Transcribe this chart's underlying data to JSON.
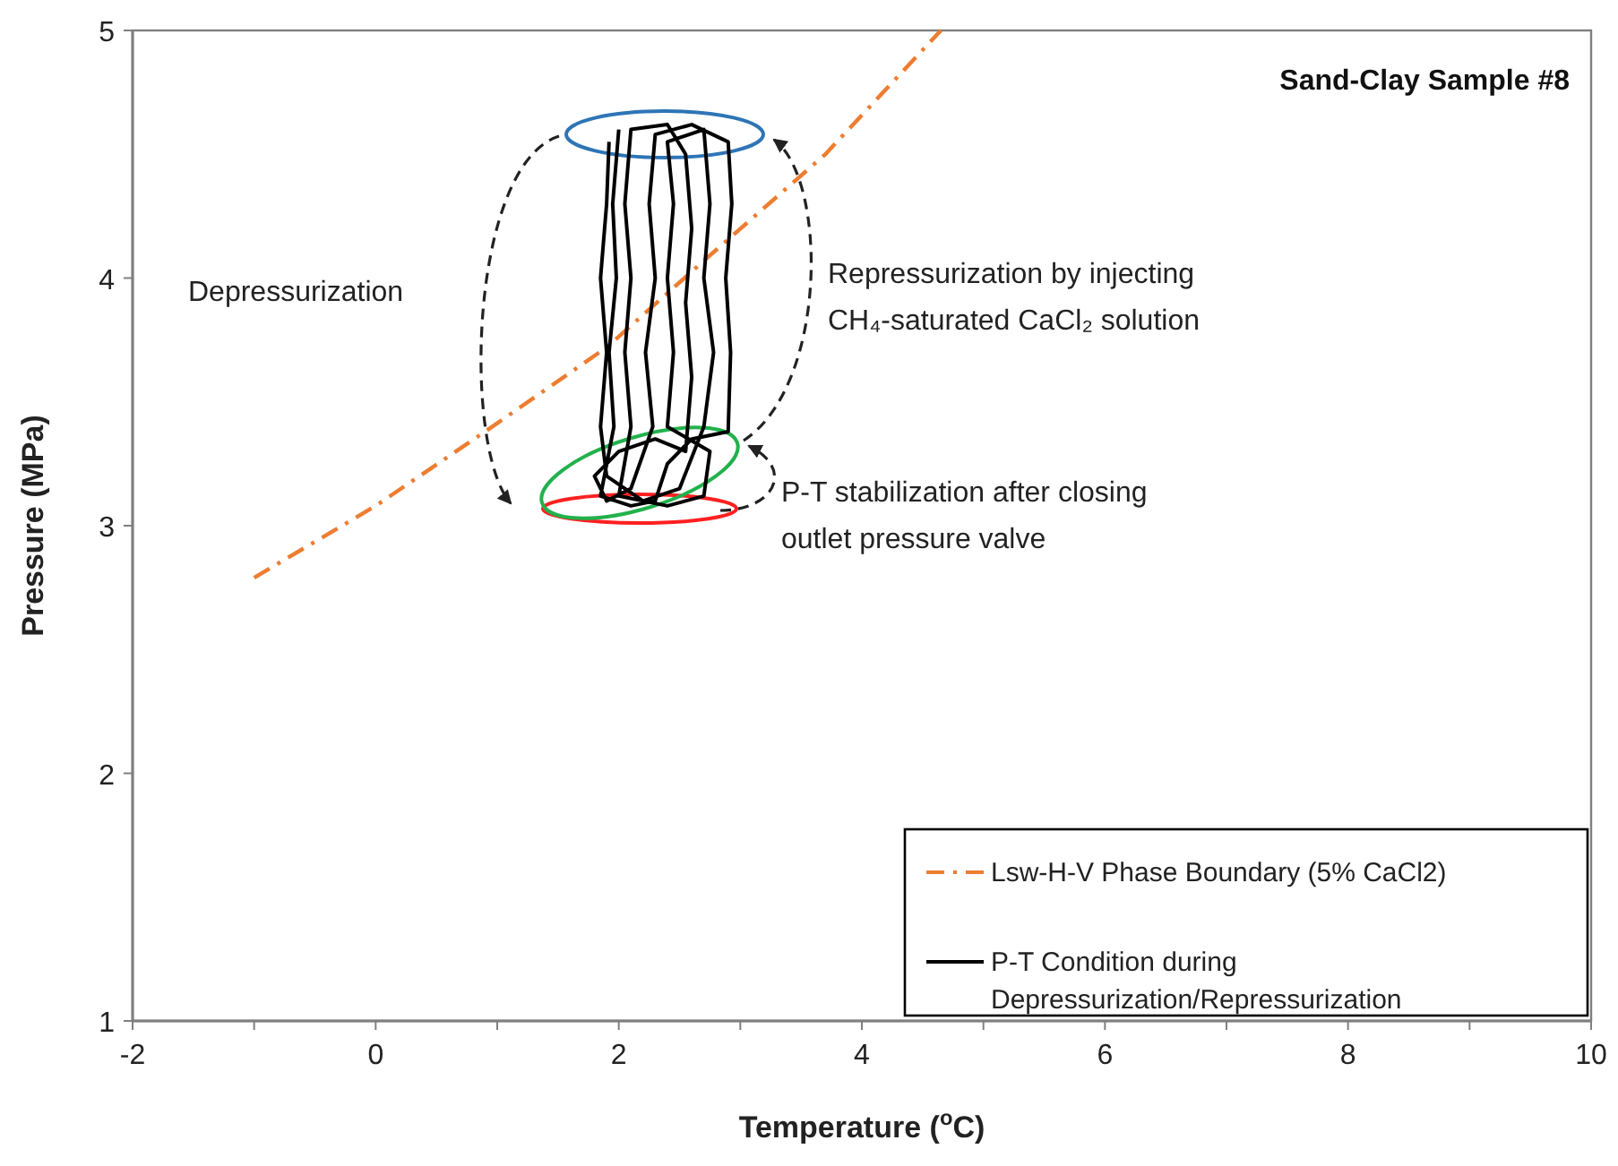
{
  "chart_data": {
    "type": "line",
    "title": "Sand-Clay Sample #8",
    "xlabel": "Temperature ($^{o}$C)",
    "ylabel": "Pressure (MPa)",
    "xlim": [
      -2,
      10
    ],
    "ylim": [
      1,
      5
    ],
    "xticks": [
      -2,
      {
        "value": -1,
        "label": null
      },
      0,
      {
        "value": 1,
        "label": null
      },
      2,
      {
        "value": 3,
        "label": null
      },
      4,
      {
        "value": 5,
        "label": null
      },
      6,
      {
        "value": 7,
        "label": null
      },
      8,
      {
        "value": 9,
        "label": null
      },
      10
    ],
    "yticks": [
      1,
      2,
      3,
      4,
      5
    ],
    "grid": false,
    "legend": "bottom right",
    "annotations": [
      "Depressurization",
      "Repressurization by injecting CH₄-saturated CaCl₂ solution",
      "P-T stabilization after closing outlet pressure valve"
    ],
    "series": [
      {
        "name": "Lsw-H-V Phase Boundary (5% CaCl2)",
        "color": "#ed7d31",
        "line_style": "dashdot",
        "x": [
          -1,
          0,
          0.93,
          1.9,
          2.7,
          3.7,
          4.65
        ],
        "values": [
          2.79,
          3.08,
          3.39,
          3.72,
          4.07,
          4.5,
          5.0
        ]
      },
      {
        "name": "P-T Condition during Depressurization/Repressurization",
        "color": "#000000",
        "line_style": "solid",
        "x": [
          2.0,
          1.95,
          1.98,
          1.92,
          1.96,
          1.85,
          2.1,
          2.3,
          2.4,
          2.6,
          2.9,
          2.92,
          2.88,
          2.93,
          2.9,
          2.6,
          2.3,
          2.25,
          2.3,
          2.22,
          2.28,
          2.1,
          1.9,
          1.8,
          2.0,
          2.3,
          2.55,
          2.6,
          2.55,
          2.6,
          2.55,
          2.4,
          2.1,
          2.05,
          2.1,
          2.05,
          2.1,
          2.0,
          2.4,
          2.7,
          2.75,
          2.4,
          2.45,
          2.4,
          2.45,
          2.4,
          2.7,
          2.75,
          2.7,
          2.78,
          2.7,
          2.5,
          2.2,
          1.9,
          1.85,
          1.9,
          1.85,
          1.9,
          1.92
        ],
        "values": [
          4.6,
          4.3,
          4.0,
          3.7,
          3.4,
          3.12,
          3.08,
          3.1,
          3.25,
          3.35,
          3.38,
          3.7,
          4.0,
          4.3,
          4.55,
          4.62,
          4.58,
          4.3,
          4.0,
          3.7,
          3.4,
          3.15,
          3.1,
          3.2,
          3.3,
          3.35,
          3.3,
          3.6,
          3.9,
          4.2,
          4.5,
          4.62,
          4.6,
          4.3,
          4.0,
          3.7,
          3.4,
          3.12,
          3.08,
          3.12,
          3.3,
          3.4,
          3.7,
          4.0,
          4.3,
          4.55,
          4.6,
          4.3,
          4.0,
          3.7,
          3.4,
          3.15,
          3.1,
          3.2,
          3.4,
          3.7,
          4.0,
          4.3,
          4.55
        ]
      }
    ]
  }
}
